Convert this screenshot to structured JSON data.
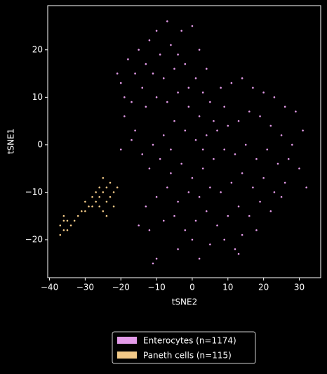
{
  "chart_data": {
    "type": "scatter",
    "x_label": "tSNE2",
    "y_label": "tSNE1",
    "xlim": [
      -40.5,
      36
    ],
    "ylim": [
      -28,
      29.3
    ],
    "xticks": [
      {
        "value": -40,
        "label": "−40"
      },
      {
        "value": -30,
        "label": "−30"
      },
      {
        "value": -20,
        "label": "−20"
      },
      {
        "value": -10,
        "label": "−10"
      },
      0,
      10,
      20,
      30
    ],
    "yticks": [
      {
        "value": -20,
        "label": "−20"
      },
      {
        "value": -10,
        "label": "−10"
      },
      0,
      10,
      20
    ],
    "legend": "below",
    "series": [
      {
        "name": "Enterocytes (n=1174)",
        "color": "#e39be8",
        "x": [
          -20,
          -18,
          -15,
          -12,
          -9,
          -6,
          -3,
          0,
          -7,
          2,
          -17,
          -14,
          -11,
          -8,
          -5,
          -2,
          1,
          3,
          -19,
          -16,
          -13,
          -10,
          -7,
          -4,
          -1,
          2,
          5,
          8,
          11,
          14,
          17,
          20,
          23,
          26,
          29,
          31,
          28,
          25,
          22,
          19,
          16,
          13,
          10,
          7,
          4,
          1,
          -2,
          -5,
          -8,
          -11,
          -14,
          -17,
          -20,
          -12,
          -9,
          -6,
          -3,
          0,
          3,
          6,
          9,
          12,
          15,
          18,
          21,
          24,
          27,
          30,
          32,
          26,
          23,
          20,
          17,
          14,
          11,
          8,
          5,
          2,
          -1,
          -4,
          -7,
          -10,
          -13,
          -15,
          -12,
          -8,
          -5,
          -2,
          1,
          4,
          7,
          10,
          13,
          16,
          19,
          22,
          25,
          18,
          14,
          9,
          5,
          0,
          -4,
          -10,
          -11,
          2,
          12,
          13,
          -19,
          -21,
          -16,
          -13,
          -10,
          -4,
          -1,
          4,
          6,
          9,
          -6,
          3
        ],
        "values": [
          13,
          18,
          20,
          22,
          19,
          21,
          24,
          25,
          26,
          20,
          9,
          12,
          15,
          14,
          16,
          17,
          14,
          11,
          6,
          3,
          8,
          10,
          9,
          11,
          8,
          6,
          9,
          12,
          13,
          14,
          12,
          11,
          10,
          8,
          7,
          3,
          0,
          2,
          4,
          6,
          7,
          5,
          4,
          3,
          2,
          1,
          3,
          5,
          2,
          0,
          -2,
          1,
          -1,
          -5,
          -3,
          -6,
          -4,
          -7,
          -5,
          -3,
          -1,
          -2,
          0,
          -3,
          -1,
          -4,
          -3,
          -5,
          -9,
          -8,
          -10,
          -7,
          -9,
          -6,
          -8,
          -10,
          -9,
          -11,
          -10,
          -12,
          -9,
          -11,
          -13,
          -17,
          -18,
          -16,
          -15,
          -18,
          -16,
          -14,
          -17,
          -15,
          -13,
          -15,
          -12,
          -14,
          -11,
          -18,
          -19,
          -20,
          -21,
          -20,
          -22,
          -24,
          -25,
          -24,
          -22,
          -23,
          10,
          15,
          15,
          17,
          24,
          19,
          12,
          16,
          5,
          8,
          -1,
          -1
        ]
      },
      {
        "name": "Paneth cells (n=115)",
        "color": "#f2c987",
        "x": [
          -37,
          -36,
          -35,
          -34,
          -36,
          -35,
          -33,
          -32,
          -31,
          -30,
          -29,
          -28,
          -27,
          -26,
          -25,
          -24,
          -23,
          -25,
          -26,
          -24,
          -27,
          -23,
          -22,
          -25,
          -24,
          -26,
          -28,
          -21,
          -36,
          -37,
          -30,
          -22
        ],
        "values": [
          -17,
          -18,
          -16,
          -17,
          -16,
          -18,
          -16,
          -15,
          -14,
          -14,
          -13,
          -13,
          -12,
          -11,
          -10,
          -9,
          -8,
          -7,
          -13,
          -12,
          -10,
          -11,
          -13,
          -14,
          -15,
          -9,
          -11,
          -9,
          -15,
          -19,
          -12,
          -10
        ]
      }
    ]
  }
}
